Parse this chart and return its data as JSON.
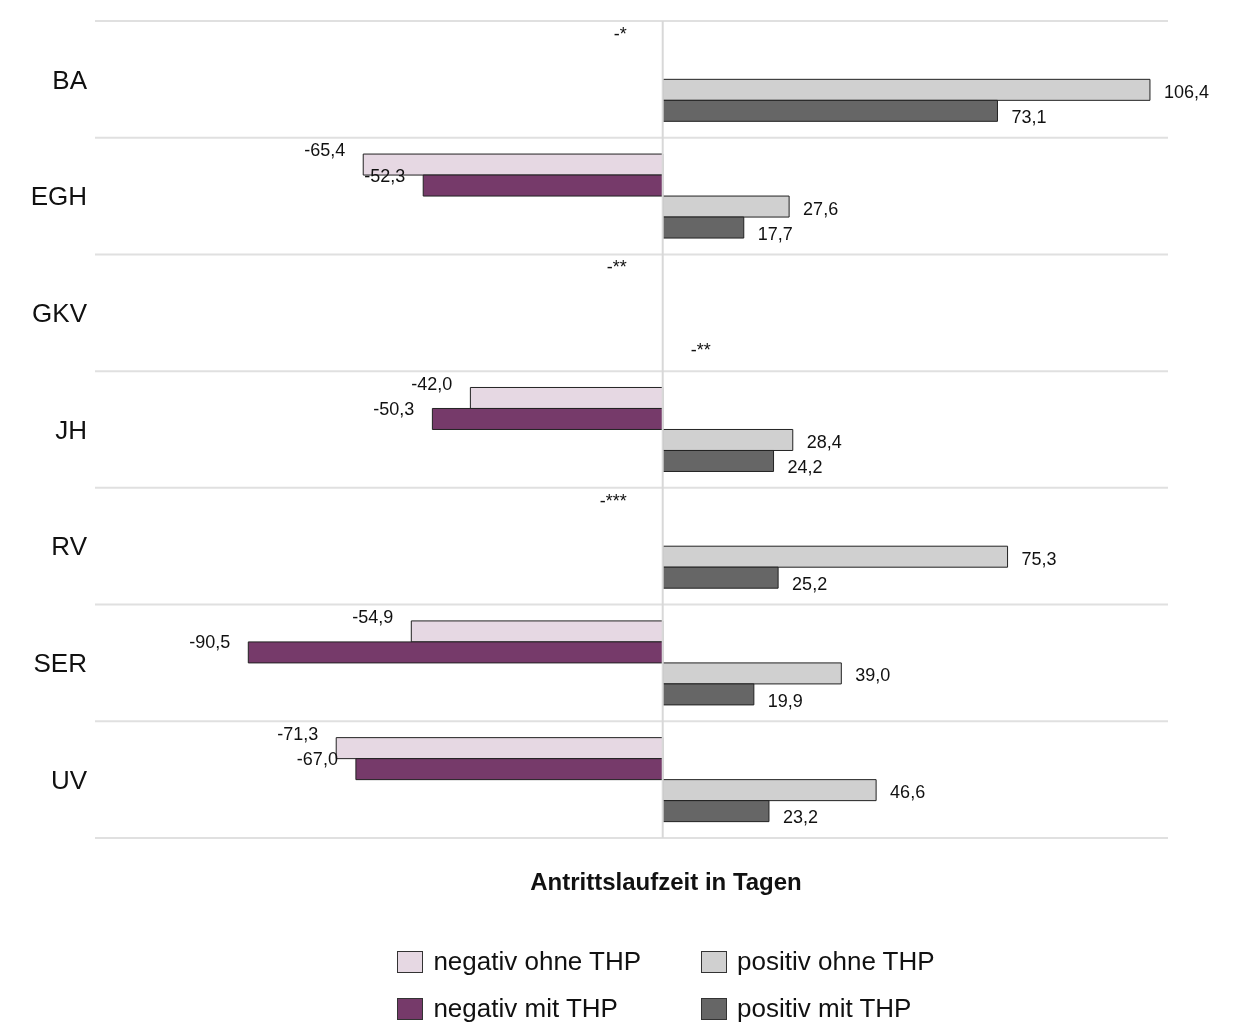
{
  "chart_data": {
    "type": "bar",
    "orientation": "horizontal",
    "relative": false,
    "xlabel": "Antrittslaufzeit in Tagen",
    "categories": [
      "BA",
      "EGH",
      "GKV",
      "JH",
      "RV",
      "SER",
      "UV"
    ],
    "series": [
      {
        "name": "negativ ohne THP",
        "color": "#e6d8e3",
        "values": [
          null,
          -65.4,
          null,
          -42.0,
          null,
          -54.9,
          -71.3
        ],
        "value_labels": [
          "-*",
          "-65,4",
          "-**",
          "-42,0",
          "-***",
          "-54,9",
          "-71,3"
        ]
      },
      {
        "name": "negativ mit THP",
        "color": "#763a6a",
        "values": [
          null,
          -52.3,
          null,
          -50.3,
          null,
          -90.5,
          -67.0
        ],
        "value_labels": [
          null,
          "-52,3",
          null,
          "-50,3",
          null,
          "-90,5",
          "-67,0"
        ]
      },
      {
        "name": "positiv ohne THP",
        "color": "#d0d0d0",
        "values": [
          106.4,
          27.6,
          null,
          28.4,
          75.3,
          39.0,
          46.6
        ],
        "value_labels": [
          "106,4",
          "27,6",
          null,
          "28,4",
          "75,3",
          "39,0",
          "46,6"
        ]
      },
      {
        "name": "positiv mit THP",
        "color": "#666666",
        "values": [
          73.1,
          17.7,
          null,
          24.2,
          25.2,
          19.9,
          23.2
        ],
        "value_labels": [
          "73,1",
          "17,7",
          "-**",
          "24,2",
          "25,2",
          "19,9",
          "23,2"
        ]
      }
    ],
    "grid": "y",
    "legend": "bottom",
    "tick_labels": "y"
  }
}
